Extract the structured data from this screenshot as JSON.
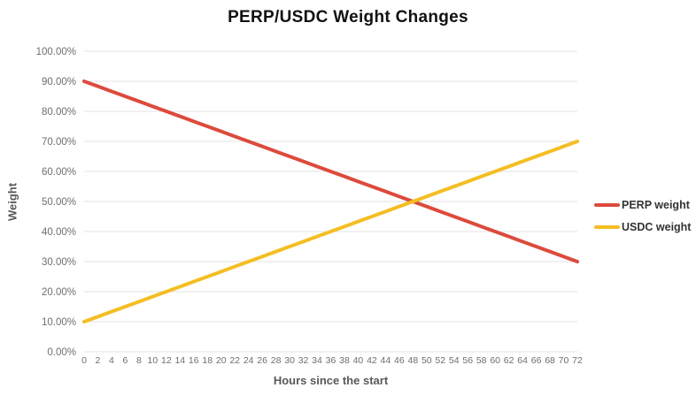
{
  "chart_title": "PERP/USDC Weight Changes",
  "colors": {
    "background": "#ffffff",
    "gridline": "#e3e3e3",
    "tick_text": "#6e6e6e",
    "axis_title_text": "#595959",
    "title_text": "#111111",
    "perp_line": "#dd4a3c",
    "usdc_line": "#f4be22"
  },
  "chart_data": {
    "type": "line",
    "title": "PERP/USDC Weight Changes",
    "xlabel": "Hours since the start",
    "ylabel": "Weight",
    "legend_position": "right",
    "grid": "horizontal",
    "ylim": [
      0,
      100
    ],
    "ytick_labels": [
      "0.00%",
      "10.00%",
      "20.00%",
      "30.00%",
      "40.00%",
      "50.00%",
      "60.00%",
      "70.00%",
      "80.00%",
      "90.00%",
      "100.00%"
    ],
    "ytick_values": [
      0,
      10,
      20,
      30,
      40,
      50,
      60,
      70,
      80,
      90,
      100
    ],
    "x": [
      0,
      2,
      4,
      6,
      8,
      10,
      12,
      14,
      16,
      18,
      20,
      22,
      24,
      26,
      28,
      30,
      32,
      34,
      36,
      38,
      40,
      42,
      44,
      46,
      48,
      50,
      52,
      54,
      56,
      58,
      60,
      62,
      64,
      66,
      68,
      70,
      72
    ],
    "series": [
      {
        "name": "PERP weight",
        "color": "#dd4a3c",
        "values": [
          90.0,
          88.33,
          86.67,
          85.0,
          83.33,
          81.67,
          80.0,
          78.33,
          76.67,
          75.0,
          73.33,
          71.67,
          70.0,
          68.33,
          66.67,
          65.0,
          63.33,
          61.67,
          60.0,
          58.33,
          56.67,
          55.0,
          53.33,
          51.67,
          50.0,
          48.33,
          46.67,
          45.0,
          43.33,
          41.67,
          40.0,
          38.33,
          36.67,
          35.0,
          33.33,
          31.67,
          30.0
        ]
      },
      {
        "name": "USDC weight",
        "color": "#f4be22",
        "values": [
          10.0,
          11.67,
          13.33,
          15.0,
          16.67,
          18.33,
          20.0,
          21.67,
          23.33,
          25.0,
          26.67,
          28.33,
          30.0,
          31.67,
          33.33,
          35.0,
          36.67,
          38.33,
          40.0,
          41.67,
          43.33,
          45.0,
          46.67,
          48.33,
          50.0,
          51.67,
          53.33,
          55.0,
          56.67,
          58.33,
          60.0,
          61.67,
          63.33,
          65.0,
          66.67,
          68.33,
          70.0
        ]
      }
    ]
  }
}
